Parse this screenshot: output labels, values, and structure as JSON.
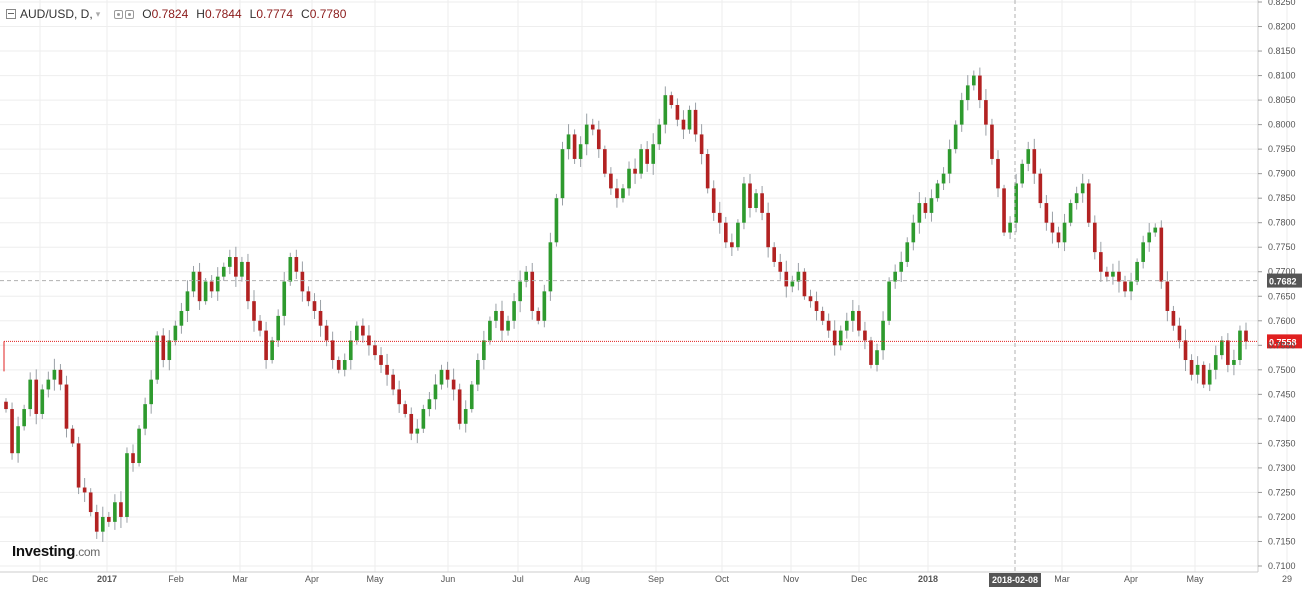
{
  "header": {
    "symbol": "AUD/USD, D,",
    "open_label": "O",
    "open": "0.7824",
    "high_label": "H",
    "high": "0.7844",
    "low_label": "L",
    "low": "0.7774",
    "close_label": "C",
    "close": "0.7780"
  },
  "logo": {
    "text": "Investing",
    "suffix": ".com"
  },
  "colors": {
    "up": "#2e9a2e",
    "down": "#b22222",
    "grid": "#eeeeee",
    "axis": "#cccccc",
    "price_line": "#e02020",
    "dashed": "#b0b0b0"
  },
  "chart_data": {
    "type": "candlestick",
    "ylim": [
      0.71,
      0.825
    ],
    "y_ticks": [
      "0.8250",
      "0.8200",
      "0.8150",
      "0.8100",
      "0.8050",
      "0.8000",
      "0.7950",
      "0.7900",
      "0.7850",
      "0.7800",
      "0.7750",
      "0.7700",
      "0.7650",
      "0.7600",
      "0.7550",
      "0.7500",
      "0.7450",
      "0.7400",
      "0.7350",
      "0.7300",
      "0.7250",
      "0.7200",
      "0.7150",
      "0.7100"
    ],
    "x_ticks": [
      {
        "label": "Dec",
        "bold": false
      },
      {
        "label": "2017",
        "bold": true
      },
      {
        "label": "Feb",
        "bold": false
      },
      {
        "label": "Mar",
        "bold": false
      },
      {
        "label": "Apr",
        "bold": false
      },
      {
        "label": "May",
        "bold": false
      },
      {
        "label": "Jun",
        "bold": false
      },
      {
        "label": "Jul",
        "bold": false
      },
      {
        "label": "Aug",
        "bold": false
      },
      {
        "label": "Sep",
        "bold": false
      },
      {
        "label": "Oct",
        "bold": false
      },
      {
        "label": "Nov",
        "bold": false
      },
      {
        "label": "Dec",
        "bold": false
      },
      {
        "label": "2018",
        "bold": true
      },
      {
        "label": "Mar",
        "bold": false
      },
      {
        "label": "Apr",
        "bold": false
      },
      {
        "label": "May",
        "bold": false
      },
      {
        "label": "29",
        "bold": false
      }
    ],
    "current_price": "0.7558",
    "crosshair_price": "0.7682",
    "crosshair_date": "2018-02-08",
    "closes": [
      0.742,
      0.733,
      0.7385,
      0.742,
      0.748,
      0.741,
      0.746,
      0.748,
      0.75,
      0.747,
      0.738,
      0.735,
      0.726,
      0.725,
      0.721,
      0.717,
      0.72,
      0.719,
      0.723,
      0.72,
      0.733,
      0.731,
      0.738,
      0.743,
      0.748,
      0.757,
      0.752,
      0.756,
      0.759,
      0.762,
      0.766,
      0.77,
      0.764,
      0.768,
      0.766,
      0.769,
      0.771,
      0.773,
      0.769,
      0.772,
      0.764,
      0.76,
      0.758,
      0.752,
      0.756,
      0.761,
      0.768,
      0.773,
      0.77,
      0.766,
      0.764,
      0.762,
      0.759,
      0.756,
      0.752,
      0.75,
      0.752,
      0.756,
      0.759,
      0.757,
      0.755,
      0.753,
      0.751,
      0.749,
      0.746,
      0.743,
      0.741,
      0.737,
      0.738,
      0.742,
      0.744,
      0.747,
      0.75,
      0.748,
      0.746,
      0.739,
      0.742,
      0.747,
      0.752,
      0.756,
      0.76,
      0.762,
      0.758,
      0.76,
      0.764,
      0.768,
      0.77,
      0.762,
      0.76,
      0.766,
      0.776,
      0.785,
      0.795,
      0.798,
      0.793,
      0.796,
      0.8,
      0.799,
      0.795,
      0.79,
      0.787,
      0.785,
      0.787,
      0.791,
      0.79,
      0.795,
      0.792,
      0.796,
      0.8,
      0.806,
      0.804,
      0.801,
      0.799,
      0.803,
      0.798,
      0.794,
      0.787,
      0.782,
      0.78,
      0.776,
      0.775,
      0.78,
      0.788,
      0.783,
      0.786,
      0.782,
      0.775,
      0.772,
      0.77,
      0.767,
      0.768,
      0.77,
      0.765,
      0.764,
      0.762,
      0.76,
      0.758,
      0.755,
      0.758,
      0.76,
      0.762,
      0.758,
      0.756,
      0.751,
      0.754,
      0.76,
      0.768,
      0.77,
      0.772,
      0.776,
      0.78,
      0.784,
      0.782,
      0.785,
      0.788,
      0.79,
      0.795,
      0.8,
      0.805,
      0.808,
      0.81,
      0.805,
      0.8,
      0.793,
      0.787,
      0.778,
      0.78,
      0.788,
      0.792,
      0.795,
      0.79,
      0.784,
      0.78,
      0.778,
      0.776,
      0.78,
      0.784,
      0.786,
      0.788,
      0.78,
      0.774,
      0.77,
      0.769,
      0.77,
      0.768,
      0.766,
      0.768,
      0.772,
      0.776,
      0.778,
      0.779,
      0.768,
      0.762,
      0.759,
      0.756,
      0.752,
      0.749,
      0.751,
      0.747,
      0.75,
      0.753,
      0.756,
      0.751,
      0.752,
      0.758,
      0.7558
    ]
  }
}
